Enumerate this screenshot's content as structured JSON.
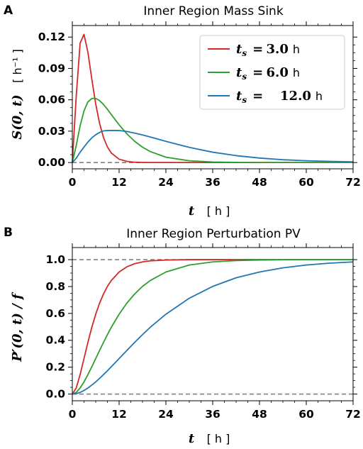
{
  "panels": [
    {
      "letter": "A",
      "title": "Inner Region Mass Sink",
      "xlabel": "t",
      "xunit": "[ h ]",
      "ylabel": "S(0, t)",
      "yunit": "[ h⁻¹ ]",
      "xticks": [
        "0",
        "12",
        "24",
        "36",
        "48",
        "60",
        "72"
      ],
      "yticks": [
        "0.00",
        "0.03",
        "0.06",
        "0.09",
        "0.12"
      ],
      "legend": [
        {
          "lhs": "t",
          "sub": "s",
          "eq": "=",
          "value": "3.0",
          "unit": "h"
        },
        {
          "lhs": "t",
          "sub": "s",
          "eq": "=",
          "value": "6.0",
          "unit": "h"
        },
        {
          "lhs": "t",
          "sub": "s",
          "eq": "=",
          "value": "12.0",
          "unit": "h"
        }
      ]
    },
    {
      "letter": "B",
      "title": "Inner Region Perturbation PV",
      "xlabel": "t",
      "xunit": "[ h ]",
      "ylabel": "P′(0, t) / f",
      "xticks": [
        "0",
        "12",
        "24",
        "36",
        "48",
        "60",
        "72"
      ],
      "yticks": [
        "0.0",
        "0.2",
        "0.4",
        "0.6",
        "0.8",
        "1.0"
      ]
    }
  ],
  "chart_data": [
    {
      "type": "line",
      "title": "Inner Region Mass Sink",
      "xlabel": "t [ h ]",
      "ylabel": "S(0, t) [ h⁻¹ ]",
      "xlim": [
        0,
        72
      ],
      "ylim": [
        -0.006,
        0.131
      ],
      "grid": false,
      "legend_position": "top-right",
      "reference_lines": [
        {
          "y": 0.0,
          "style": "dashed",
          "color": "#808080"
        }
      ],
      "x": [
        0,
        1,
        2,
        3,
        4,
        5,
        6,
        7,
        8,
        9,
        10,
        12,
        14,
        16,
        18,
        20,
        24,
        30,
        36,
        42,
        48,
        54,
        60,
        66,
        72
      ],
      "series": [
        {
          "name": "t_s = 3.0 h",
          "color": "#d62728",
          "values": [
            0.0,
            0.0632,
            0.1141,
            0.1226,
            0.1053,
            0.0798,
            0.056,
            0.0373,
            0.0239,
            0.0149,
            0.0091,
            0.0032,
            0.0011,
            0.0003,
            0.0001,
            0.0,
            0.0,
            0.0,
            0.0,
            0.0,
            0.0,
            0.0,
            0.0,
            0.0,
            0.0
          ]
        },
        {
          "name": "t_s = 6.0 h",
          "color": "#2ca02c",
          "values": [
            0.0,
            0.0163,
            0.0351,
            0.0495,
            0.058,
            0.0613,
            0.0613,
            0.0592,
            0.0555,
            0.0509,
            0.0459,
            0.0361,
            0.0274,
            0.0203,
            0.0147,
            0.0105,
            0.0051,
            0.0017,
            0.0005,
            0.0002,
            0.0,
            0.0,
            0.0,
            0.0,
            0.0
          ]
        },
        {
          "name": "t_s = 12.0 h",
          "color": "#1f77b4",
          "values": [
            0.0,
            0.0041,
            0.0099,
            0.0148,
            0.0196,
            0.0236,
            0.0266,
            0.0288,
            0.0303,
            0.0306,
            0.0307,
            0.0306,
            0.0297,
            0.0282,
            0.0264,
            0.0244,
            0.0203,
            0.0145,
            0.0099,
            0.0066,
            0.0043,
            0.0027,
            0.0017,
            0.0011,
            0.0007
          ]
        }
      ]
    },
    {
      "type": "line",
      "title": "Inner Region Perturbation PV",
      "xlabel": "t [ h ]",
      "ylabel": "P′(0, t) / f",
      "xlim": [
        0,
        72
      ],
      "ylim": [
        -0.05,
        1.09
      ],
      "grid": false,
      "legend_position": "none",
      "reference_lines": [
        {
          "y": 0.0,
          "style": "dashed",
          "color": "#808080"
        },
        {
          "y": 1.0,
          "style": "dashed",
          "color": "#808080"
        }
      ],
      "x": [
        0,
        1,
        2,
        3,
        4,
        5,
        6,
        7,
        8,
        9,
        10,
        12,
        14,
        16,
        18,
        20,
        24,
        30,
        36,
        42,
        48,
        54,
        60,
        66,
        72
      ],
      "series": [
        {
          "name": "t_s = 3.0 h",
          "color": "#d62728",
          "values": [
            0.0,
            0.045,
            0.145,
            0.265,
            0.385,
            0.497,
            0.594,
            0.677,
            0.745,
            0.801,
            0.845,
            0.908,
            0.947,
            0.97,
            0.983,
            0.991,
            0.997,
            1.0,
            1.0,
            1.0,
            1.0,
            1.0,
            1.0,
            1.0,
            1.0
          ]
        },
        {
          "name": "t_s = 6.0 h",
          "color": "#2ca02c",
          "values": [
            0.0,
            0.012,
            0.045,
            0.09,
            0.145,
            0.203,
            0.264,
            0.325,
            0.385,
            0.442,
            0.497,
            0.594,
            0.677,
            0.745,
            0.801,
            0.845,
            0.908,
            0.96,
            0.983,
            0.993,
            0.997,
            0.999,
            1.0,
            1.0,
            1.0
          ]
        },
        {
          "name": "t_s = 12.0 h",
          "color": "#1f77b4",
          "values": [
            0.0,
            0.003,
            0.012,
            0.027,
            0.045,
            0.067,
            0.09,
            0.117,
            0.145,
            0.173,
            0.203,
            0.264,
            0.325,
            0.385,
            0.442,
            0.497,
            0.594,
            0.713,
            0.801,
            0.865,
            0.908,
            0.939,
            0.96,
            0.974,
            0.983
          ]
        }
      ]
    }
  ]
}
